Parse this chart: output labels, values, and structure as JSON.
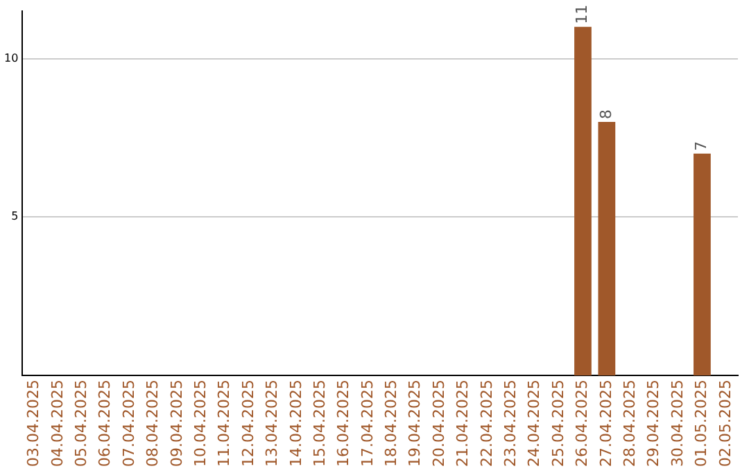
{
  "chart_data": {
    "type": "bar",
    "categories": [
      "03.04.2025",
      "04.04.2025",
      "05.04.2025",
      "06.04.2025",
      "07.04.2025",
      "08.04.2025",
      "09.04.2025",
      "10.04.2025",
      "11.04.2025",
      "12.04.2025",
      "13.04.2025",
      "14.04.2025",
      "15.04.2025",
      "16.04.2025",
      "17.04.2025",
      "18.04.2025",
      "19.04.2025",
      "20.04.2025",
      "21.04.2025",
      "22.04.2025",
      "23.04.2025",
      "24.04.2025",
      "25.04.2025",
      "26.04.2025",
      "27.04.2025",
      "28.04.2025",
      "29.04.2025",
      "30.04.2025",
      "01.05.2025",
      "02.05.2025"
    ],
    "values": [
      null,
      null,
      null,
      null,
      null,
      null,
      null,
      null,
      null,
      null,
      null,
      null,
      null,
      null,
      null,
      null,
      null,
      null,
      null,
      null,
      null,
      null,
      null,
      11,
      8,
      null,
      null,
      null,
      7,
      null
    ],
    "color": "#a0582a",
    "ylim": [
      0,
      11.5
    ],
    "yticks": [
      5,
      10
    ],
    "grid": "y",
    "data_labels": true,
    "legend": false
  }
}
